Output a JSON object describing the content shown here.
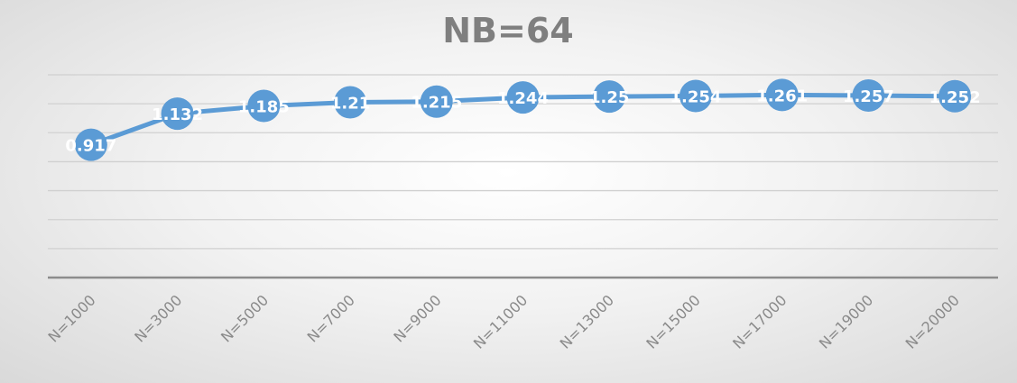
{
  "chart_data": {
    "type": "line",
    "title": "NB=64",
    "categories": [
      "N=1000",
      "N=3000",
      "N=5000",
      "N=7000",
      "N=9000",
      "N=11000",
      "N=13000",
      "N=15000",
      "N=17000",
      "N=19000",
      "N=20000"
    ],
    "values": [
      0.917,
      1.132,
      1.185,
      1.21,
      1.215,
      1.244,
      1.25,
      1.254,
      1.261,
      1.257,
      1.252
    ],
    "data_labels": [
      "0.917",
      "1.132",
      "1.185",
      "1.21",
      "1.215",
      "1.244",
      "1.25",
      "1.254",
      "1.261",
      "1.257",
      "1.252"
    ],
    "ylim": [
      0,
      1.4
    ],
    "grid": true,
    "legend": "none",
    "colors": {
      "series": "#5b9bd5",
      "title": "#7f7f7f",
      "grid": "#d0d0d0",
      "axis": "#8c8c8c",
      "tick_label": "#8a8a8a"
    }
  }
}
